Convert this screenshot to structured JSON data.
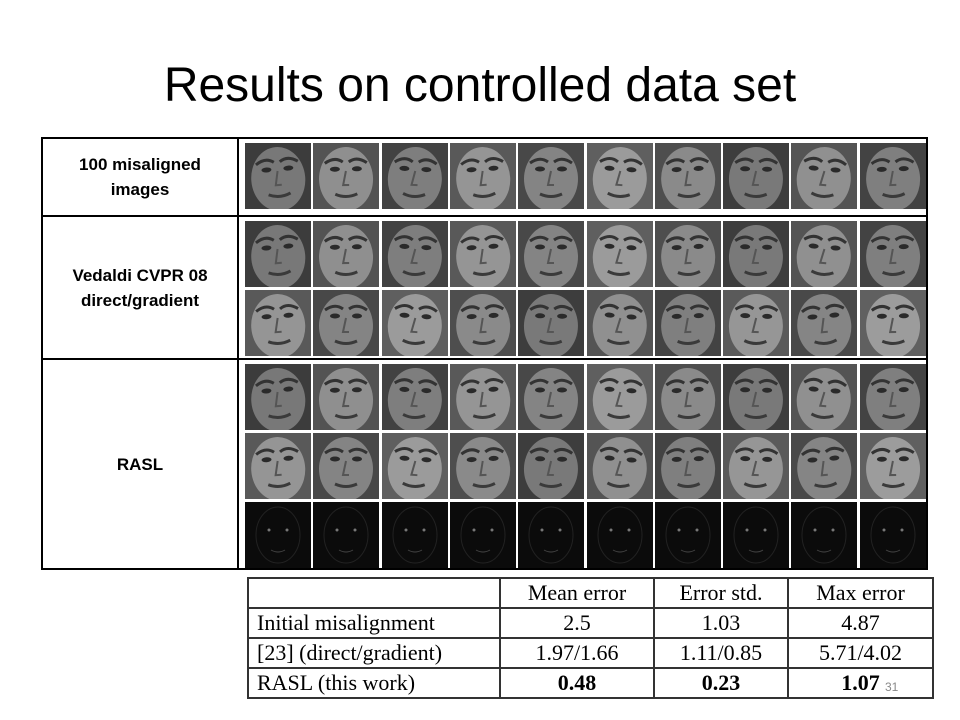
{
  "title": "Results on controlled data set",
  "image_table": {
    "rows": [
      {
        "label": "100 misaligned images"
      },
      {
        "label": "Vedaldi CVPR 08 direct/gradient"
      },
      {
        "label": "RASL"
      }
    ]
  },
  "results_table": {
    "header": [
      "Mean error",
      "Error std.",
      "Max error"
    ],
    "rows": [
      [
        "Initial misalignment",
        "2.5",
        "1.03",
        "4.87"
      ],
      [
        "[23] (direct/gradient)",
        "1.97/1.66",
        "1.11/0.85",
        "5.71/4.02"
      ],
      [
        "RASL (this work)",
        "0.48",
        "0.23",
        "1.07"
      ]
    ]
  },
  "page_number": 31
}
